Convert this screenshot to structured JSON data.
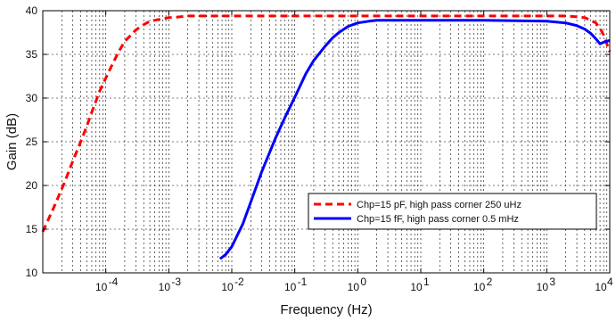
{
  "chart_data": {
    "type": "line",
    "xscale": "log",
    "xlabel": "Frequency (Hz)",
    "ylabel": "Gain (dB)",
    "xlim": [
      1e-05,
      10000
    ],
    "ylim": [
      10,
      40
    ],
    "grid": true,
    "legend_position": "lower-right",
    "x_ticks": [
      {
        "value": 0.0001,
        "base": "10",
        "exp": "-4"
      },
      {
        "value": 0.001,
        "base": "10",
        "exp": "-3"
      },
      {
        "value": 0.01,
        "base": "10",
        "exp": "-2"
      },
      {
        "value": 0.1,
        "base": "10",
        "exp": "-1"
      },
      {
        "value": 1,
        "base": "10",
        "exp": "0"
      },
      {
        "value": 10,
        "base": "10",
        "exp": "1"
      },
      {
        "value": 100,
        "base": "10",
        "exp": "2"
      },
      {
        "value": 1000,
        "base": "10",
        "exp": "3"
      },
      {
        "value": 10000,
        "base": "10",
        "exp": "4"
      }
    ],
    "y_ticks": [
      "10",
      "15",
      "20",
      "25",
      "30",
      "35",
      "40"
    ],
    "series": [
      {
        "name": "Chp=15 pF, high pass corner 250 uHz",
        "color": "#ff0000",
        "dash": "dashed",
        "x": [
          1e-05,
          1.5e-05,
          2.2e-05,
          3e-05,
          4e-05,
          5e-05,
          6e-05,
          8e-05,
          0.0001,
          0.00013,
          0.00016,
          0.0002,
          0.00025,
          0.0003,
          0.0004,
          0.0005,
          0.0007,
          0.001,
          0.0015,
          0.002,
          0.003,
          0.005,
          0.01,
          0.1,
          1,
          10,
          100,
          1000,
          2000,
          3000,
          4000,
          5000,
          6000,
          7000,
          8000,
          10000
        ],
        "y": [
          14.7,
          17.5,
          20.3,
          22.8,
          25.0,
          26.8,
          28.4,
          30.8,
          32.3,
          34.0,
          35.3,
          36.5,
          37.2,
          37.8,
          38.4,
          38.8,
          39.0,
          39.2,
          39.3,
          39.4,
          39.4,
          39.4,
          39.4,
          39.4,
          39.4,
          39.4,
          39.4,
          39.4,
          39.4,
          39.3,
          39.2,
          38.9,
          38.6,
          38.0,
          37.2,
          35.3
        ]
      },
      {
        "name": "Chp=15 fF, high pass corner 0.5 mHz",
        "color": "#0000ff",
        "dash": "solid",
        "x": [
          0.0065,
          0.008,
          0.01,
          0.015,
          0.02,
          0.03,
          0.05,
          0.07,
          0.1,
          0.15,
          0.2,
          0.3,
          0.4,
          0.5,
          0.7,
          1,
          1.5,
          2,
          3,
          5,
          10,
          100,
          1000,
          2000,
          3000,
          4000,
          5000,
          6000,
          7000,
          8000,
          10000
        ],
        "y": [
          11.6,
          12.1,
          13.0,
          15.6,
          18.1,
          21.6,
          25.5,
          27.8,
          30.1,
          32.8,
          34.3,
          35.9,
          36.9,
          37.5,
          38.2,
          38.6,
          38.8,
          38.9,
          38.9,
          38.9,
          38.9,
          38.9,
          38.8,
          38.6,
          38.3,
          37.9,
          37.4,
          36.8,
          36.2,
          36.4,
          36.6
        ]
      }
    ]
  }
}
